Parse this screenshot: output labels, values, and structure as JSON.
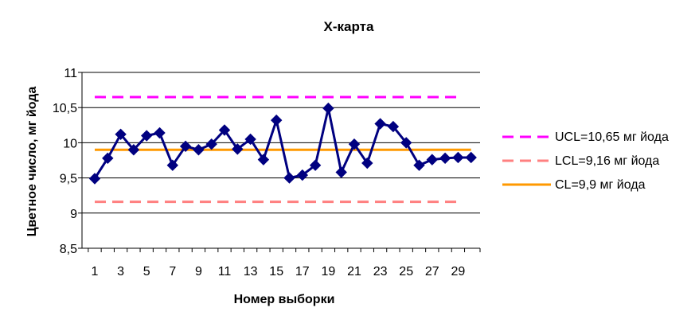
{
  "chart_data": {
    "type": "line",
    "title": "X-карта",
    "xlabel": "Номер выборки",
    "ylabel": "Цветное число, мг йода",
    "ylim": [
      8.5,
      11
    ],
    "yticks": [
      "8,5",
      "9",
      "9,5",
      "10",
      "10,5",
      "11"
    ],
    "x": [
      1,
      2,
      3,
      4,
      5,
      6,
      7,
      8,
      9,
      10,
      11,
      12,
      13,
      14,
      15,
      16,
      17,
      18,
      19,
      20,
      21,
      22,
      23,
      24,
      25,
      26,
      27,
      28,
      29,
      30
    ],
    "xtick_labels": [
      "1",
      "3",
      "5",
      "7",
      "9",
      "11",
      "13",
      "15",
      "17",
      "19",
      "21",
      "23",
      "25",
      "27",
      "29"
    ],
    "grid": "horizontal",
    "legend_position": "right",
    "series": [
      {
        "values": [
          9.49,
          9.78,
          10.12,
          9.9,
          10.1,
          10.14,
          9.68,
          9.95,
          9.9,
          9.98,
          10.18,
          9.91,
          10.05,
          9.76,
          10.32,
          9.5,
          9.54,
          9.68,
          10.49,
          9.58,
          9.98,
          9.71,
          10.27,
          10.23,
          10.0,
          9.68,
          9.76,
          9.78,
          9.79,
          9.79
        ],
        "color": "#000080",
        "marker": "diamond"
      },
      {
        "name": "UCL=10,65 мг йода",
        "value": 10.65,
        "color": "#ff00ff",
        "style": "dashed"
      },
      {
        "name": "LCL=9,16 мг йода",
        "value": 9.16,
        "color": "#ff8080",
        "style": "dashed"
      },
      {
        "name": "CL=9,9 мг йода",
        "value": 9.9,
        "color": "#ff9900",
        "style": "solid"
      }
    ]
  }
}
